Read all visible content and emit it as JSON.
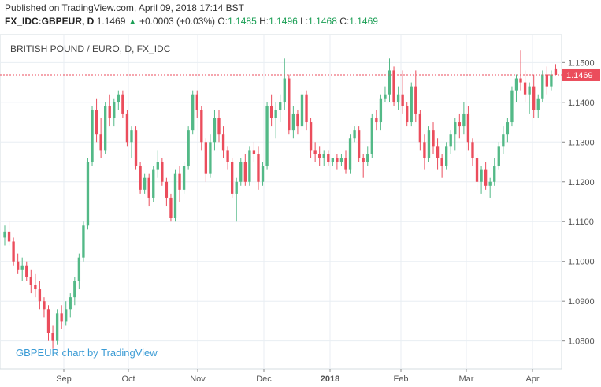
{
  "header": {
    "published": "Published on TradingView.com, April 09, 2018 17:14 BST",
    "symbol": "FX_IDC:GBPEUR, D",
    "last": "1.1469",
    "change": "+0.0003 (+0.03%)",
    "o_label": "O:",
    "o_val": "1.1485",
    "h_label": "H:",
    "h_val": "1.1496",
    "l_label": "L:",
    "l_val": "1.1468",
    "c_label": "C:",
    "c_val": "1.1469"
  },
  "chart_title": "BRITISH POUND / EURO, D, FX_IDC",
  "watermark": "GBPEUR chart by TradingView",
  "colors": {
    "up": "#53b987",
    "down": "#eb4d5c",
    "grid": "#e8eef3",
    "price_line": "#eb4d5c"
  },
  "chart_data": {
    "type": "candlestick",
    "title": "BRITISH POUND / EURO, D, FX_IDC",
    "ylim": [
      1.073,
      1.157
    ],
    "y_ticks": [
      "1.0800",
      "1.0900",
      "1.1000",
      "1.1100",
      "1.1200",
      "1.1300",
      "1.1400",
      "1.1500"
    ],
    "x_ticks": [
      "Sep",
      "Oct",
      "Nov",
      "Dec",
      "2018",
      "Feb",
      "Mar",
      "Apr"
    ],
    "last_price": "1.1469",
    "grid": true,
    "candles": [
      [
        1.106,
        1.109,
        1.104,
        1.1075
      ],
      [
        1.1075,
        1.11,
        1.104,
        1.105
      ],
      [
        1.105,
        1.106,
        1.099,
        1.1
      ],
      [
        1.1,
        1.102,
        1.097,
        1.098
      ],
      [
        1.098,
        1.101,
        1.095,
        1.099
      ],
      [
        1.099,
        1.1,
        1.095,
        1.096
      ],
      [
        1.096,
        1.098,
        1.092,
        1.094
      ],
      [
        1.094,
        1.097,
        1.091,
        1.093
      ],
      [
        1.093,
        1.095,
        1.088,
        1.09
      ],
      [
        1.09,
        1.091,
        1.086,
        1.088
      ],
      [
        1.088,
        1.089,
        1.08,
        1.082
      ],
      [
        1.082,
        1.084,
        1.078,
        1.08
      ],
      [
        1.08,
        1.088,
        1.079,
        1.087
      ],
      [
        1.087,
        1.089,
        1.083,
        1.085
      ],
      [
        1.085,
        1.09,
        1.084,
        1.088
      ],
      [
        1.088,
        1.092,
        1.086,
        1.091
      ],
      [
        1.091,
        1.096,
        1.089,
        1.095
      ],
      [
        1.095,
        1.102,
        1.093,
        1.101
      ],
      [
        1.101,
        1.11,
        1.1,
        1.109
      ],
      [
        1.109,
        1.126,
        1.108,
        1.125
      ],
      [
        1.125,
        1.139,
        1.124,
        1.138
      ],
      [
        1.138,
        1.141,
        1.13,
        1.132
      ],
      [
        1.132,
        1.136,
        1.126,
        1.128
      ],
      [
        1.128,
        1.14,
        1.127,
        1.139
      ],
      [
        1.139,
        1.142,
        1.134,
        1.136
      ],
      [
        1.136,
        1.141,
        1.134,
        1.14
      ],
      [
        1.14,
        1.143,
        1.138,
        1.142
      ],
      [
        1.142,
        1.143,
        1.136,
        1.137
      ],
      [
        1.137,
        1.138,
        1.129,
        1.13
      ],
      [
        1.13,
        1.134,
        1.126,
        1.133
      ],
      [
        1.133,
        1.134,
        1.123,
        1.124
      ],
      [
        1.124,
        1.125,
        1.117,
        1.118
      ],
      [
        1.118,
        1.122,
        1.117,
        1.121
      ],
      [
        1.121,
        1.122,
        1.114,
        1.116
      ],
      [
        1.116,
        1.124,
        1.115,
        1.123
      ],
      [
        1.123,
        1.128,
        1.121,
        1.125
      ],
      [
        1.125,
        1.126,
        1.119,
        1.12
      ],
      [
        1.12,
        1.121,
        1.114,
        1.116
      ],
      [
        1.116,
        1.117,
        1.11,
        1.111
      ],
      [
        1.111,
        1.123,
        1.11,
        1.122
      ],
      [
        1.122,
        1.124,
        1.115,
        1.118
      ],
      [
        1.118,
        1.125,
        1.117,
        1.124
      ],
      [
        1.124,
        1.134,
        1.123,
        1.133
      ],
      [
        1.133,
        1.143,
        1.132,
        1.142
      ],
      [
        1.142,
        1.143,
        1.136,
        1.138
      ],
      [
        1.138,
        1.139,
        1.128,
        1.13
      ],
      [
        1.13,
        1.131,
        1.12,
        1.122
      ],
      [
        1.122,
        1.132,
        1.121,
        1.13
      ],
      [
        1.13,
        1.138,
        1.128,
        1.136
      ],
      [
        1.136,
        1.138,
        1.13,
        1.132
      ],
      [
        1.132,
        1.134,
        1.126,
        1.128
      ],
      [
        1.128,
        1.129,
        1.123,
        1.125
      ],
      [
        1.125,
        1.126,
        1.116,
        1.117
      ],
      [
        1.117,
        1.121,
        1.11,
        1.12
      ],
      [
        1.12,
        1.126,
        1.119,
        1.125
      ],
      [
        1.125,
        1.127,
        1.119,
        1.12
      ],
      [
        1.12,
        1.129,
        1.119,
        1.128
      ],
      [
        1.128,
        1.13,
        1.125,
        1.127
      ],
      [
        1.127,
        1.129,
        1.118,
        1.12
      ],
      [
        1.12,
        1.125,
        1.119,
        1.124
      ],
      [
        1.124,
        1.14,
        1.123,
        1.139
      ],
      [
        1.139,
        1.142,
        1.134,
        1.136
      ],
      [
        1.136,
        1.14,
        1.131,
        1.138
      ],
      [
        1.138,
        1.142,
        1.135,
        1.14
      ],
      [
        1.14,
        1.151,
        1.138,
        1.146
      ],
      [
        1.146,
        1.147,
        1.132,
        1.133
      ],
      [
        1.133,
        1.139,
        1.131,
        1.137
      ],
      [
        1.137,
        1.138,
        1.132,
        1.134
      ],
      [
        1.134,
        1.143,
        1.133,
        1.142
      ],
      [
        1.142,
        1.143,
        1.133,
        1.135
      ],
      [
        1.135,
        1.136,
        1.126,
        1.128
      ],
      [
        1.128,
        1.13,
        1.125,
        1.127
      ],
      [
        1.127,
        1.129,
        1.124,
        1.126
      ],
      [
        1.126,
        1.128,
        1.124,
        1.127
      ],
      [
        1.127,
        1.128,
        1.124,
        1.125
      ],
      [
        1.125,
        1.126,
        1.124,
        1.126
      ],
      [
        1.126,
        1.127,
        1.123,
        1.125
      ],
      [
        1.125,
        1.127,
        1.124,
        1.126
      ],
      [
        1.126,
        1.128,
        1.122,
        1.123
      ],
      [
        1.123,
        1.132,
        1.122,
        1.131
      ],
      [
        1.131,
        1.134,
        1.13,
        1.133
      ],
      [
        1.133,
        1.134,
        1.125,
        1.126
      ],
      [
        1.126,
        1.127,
        1.121,
        1.125
      ],
      [
        1.125,
        1.129,
        1.124,
        1.127
      ],
      [
        1.127,
        1.137,
        1.126,
        1.136
      ],
      [
        1.136,
        1.138,
        1.133,
        1.135
      ],
      [
        1.135,
        1.142,
        1.133,
        1.141
      ],
      [
        1.141,
        1.144,
        1.14,
        1.142
      ],
      [
        1.142,
        1.151,
        1.14,
        1.148
      ],
      [
        1.148,
        1.149,
        1.139,
        1.14
      ],
      [
        1.14,
        1.144,
        1.138,
        1.142
      ],
      [
        1.142,
        1.148,
        1.137,
        1.139
      ],
      [
        1.139,
        1.14,
        1.134,
        1.135
      ],
      [
        1.135,
        1.145,
        1.134,
        1.144
      ],
      [
        1.144,
        1.148,
        1.135,
        1.137
      ],
      [
        1.137,
        1.138,
        1.128,
        1.13
      ],
      [
        1.13,
        1.132,
        1.123,
        1.126
      ],
      [
        1.126,
        1.134,
        1.125,
        1.133
      ],
      [
        1.133,
        1.135,
        1.127,
        1.129
      ],
      [
        1.129,
        1.131,
        1.123,
        1.126
      ],
      [
        1.126,
        1.127,
        1.121,
        1.124
      ],
      [
        1.124,
        1.13,
        1.123,
        1.129
      ],
      [
        1.129,
        1.133,
        1.127,
        1.132
      ],
      [
        1.132,
        1.136,
        1.128,
        1.135
      ],
      [
        1.135,
        1.137,
        1.131,
        1.134
      ],
      [
        1.134,
        1.14,
        1.132,
        1.137
      ],
      [
        1.137,
        1.139,
        1.128,
        1.13
      ],
      [
        1.13,
        1.131,
        1.124,
        1.126
      ],
      [
        1.126,
        1.127,
        1.118,
        1.12
      ],
      [
        1.12,
        1.124,
        1.117,
        1.123
      ],
      [
        1.123,
        1.125,
        1.118,
        1.119
      ],
      [
        1.119,
        1.121,
        1.116,
        1.12
      ],
      [
        1.12,
        1.126,
        1.119,
        1.124
      ],
      [
        1.124,
        1.13,
        1.123,
        1.129
      ],
      [
        1.129,
        1.134,
        1.127,
        1.132
      ],
      [
        1.132,
        1.136,
        1.13,
        1.135
      ],
      [
        1.135,
        1.144,
        1.134,
        1.143
      ],
      [
        1.143,
        1.147,
        1.14,
        1.146
      ],
      [
        1.146,
        1.153,
        1.143,
        1.145
      ],
      [
        1.145,
        1.148,
        1.14,
        1.142
      ],
      [
        1.142,
        1.145,
        1.137,
        1.144
      ],
      [
        1.144,
        1.147,
        1.136,
        1.138
      ],
      [
        1.138,
        1.142,
        1.136,
        1.141
      ],
      [
        1.141,
        1.148,
        1.14,
        1.147
      ],
      [
        1.147,
        1.149,
        1.142,
        1.144
      ],
      [
        1.144,
        1.148,
        1.143,
        1.147
      ],
      [
        1.1485,
        1.1496,
        1.1468,
        1.1469
      ]
    ]
  }
}
